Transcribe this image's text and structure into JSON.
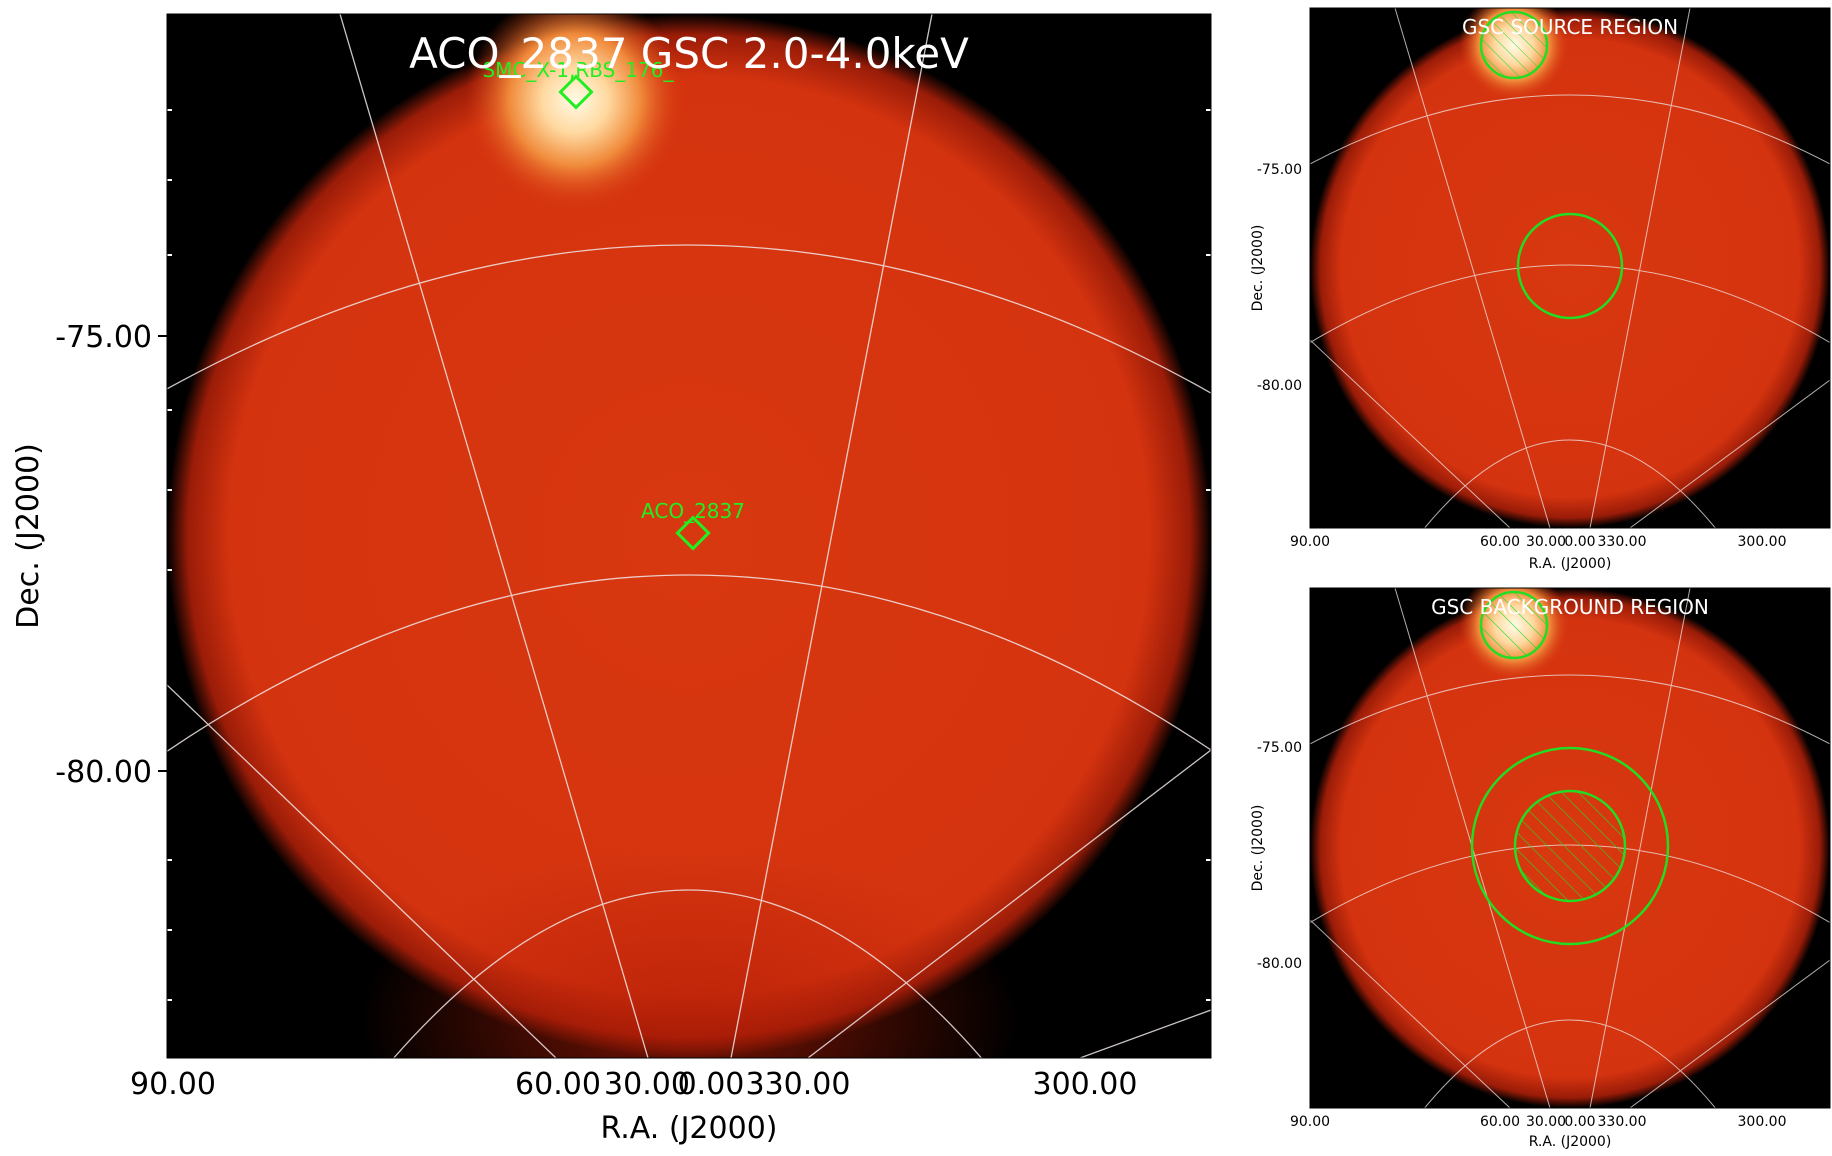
{
  "main": {
    "title": "ACO_2837 GSC 2.0-4.0keV",
    "ylabel": "Dec. (J2000)",
    "xlabel": "R.A. (J2000)",
    "yticks": [
      "-75.00",
      "-80.00"
    ],
    "xticks": [
      "90.00",
      "60.00",
      "30.00",
      "0.00",
      "330.00",
      "300.00"
    ],
    "sources": [
      {
        "label": "SMC_X-1,RBS_176_"
      },
      {
        "label": "ACO_2837"
      }
    ]
  },
  "source_panel": {
    "title": "GSC SOURCE REGION",
    "ylabel": "Dec. (J2000)",
    "xlabel": "R.A. (J2000)",
    "yticks": [
      "-75.00",
      "-80.00"
    ],
    "xticks": [
      "90.00",
      "60.00",
      "30.00",
      "0.00",
      "330.00",
      "300.00"
    ]
  },
  "background_panel": {
    "title": "GSC BACKGROUND REGION",
    "ylabel": "Dec. (J2000)",
    "xlabel": "R.A. (J2000)",
    "yticks": [
      "-75.00",
      "-80.00"
    ],
    "xticks": [
      "90.00",
      "60.00",
      "30.00",
      "0.00",
      "330.00",
      "300.00"
    ]
  },
  "colors": {
    "frame_bg": "#000000",
    "field": "#d83414",
    "bright_source": "#fff6e0",
    "region": "#22dd22",
    "grid": "#f0e8e8",
    "label_green": "#22ee22"
  }
}
